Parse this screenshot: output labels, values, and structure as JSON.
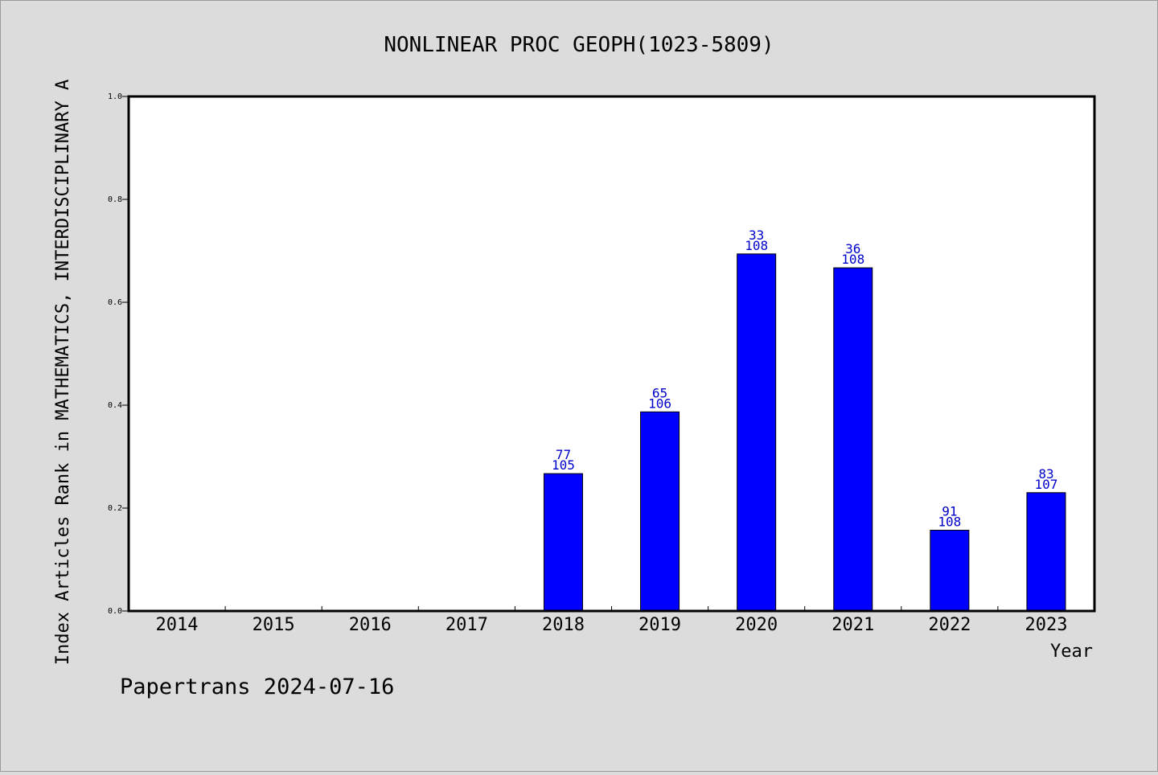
{
  "chart_data": {
    "type": "bar",
    "title": "NONLINEAR PROC GEOPH(1023-5809)",
    "xlabel": "Year",
    "ylabel": "Index Articles Rank in MATHEMATICS,  INTERDISCIPLINARY A",
    "categories": [
      "2014",
      "2015",
      "2016",
      "2017",
      "2018",
      "2019",
      "2020",
      "2021",
      "2022",
      "2023"
    ],
    "values": [
      null,
      null,
      null,
      null,
      0.267,
      0.387,
      0.694,
      0.667,
      0.157,
      0.23
    ],
    "ranks": [
      "",
      "",
      "",
      "",
      "77",
      "65",
      "33",
      "36",
      "91",
      "83"
    ],
    "totals": [
      "",
      "",
      "",
      "",
      "105",
      "106",
      "108",
      "108",
      "108",
      "107"
    ],
    "ylim": [
      0,
      1.0
    ],
    "yticks": [
      "0.0",
      "0.2",
      "0.4",
      "0.6",
      "0.8",
      "1.0"
    ],
    "grid": false,
    "bar_color": "#0000ff",
    "label_color": "#0000cc"
  },
  "footer": "Papertrans 2024-07-16"
}
